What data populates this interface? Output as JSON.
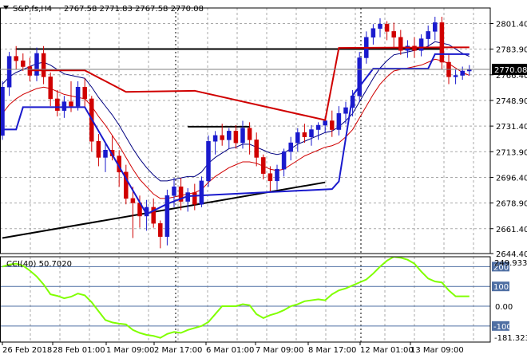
{
  "header": {
    "symbol": "S&P,fs,H4",
    "ohlc": "2767.58 2771.83 2767.58 2770.08"
  },
  "indicator": {
    "label": "CCI(40) 50.7020",
    "axis_top_value": "249.9335",
    "axis_bottom_value": "-181.3234"
  },
  "colors": {
    "background": "#ffffff",
    "grid": "#a9a9a9",
    "bull": "#1a1acd",
    "bear": "#d00000",
    "trend_channel_line": "#d00000",
    "lower_channel_line": "#1a1acd",
    "moving_average": "#000080",
    "cci_line": "#80ff00",
    "cci_level_line": "#4f6fa3",
    "price_tag": "#000000"
  },
  "chart_data": [
    {
      "type": "candlestick",
      "title": "S&P,fs,H4",
      "current_price": "2770.08",
      "y_tick_labels": [
        "2801.40",
        "2783.90",
        "2766.40",
        "2748.90",
        "2731.40",
        "2713.90",
        "2696.40",
        "2678.90",
        "2661.40",
        "2644.40"
      ],
      "ylim": [
        2644.4,
        2812
      ],
      "x_tick_labels": [
        "26 Feb 2018",
        "28 Feb 01:00",
        "1 Mar 09:00",
        "2 Mar 17:00",
        "6 Mar 01:00",
        "7 Mar 09:00",
        "8 Mar 17:00",
        "12 Mar 01:00",
        "13 Mar 09:00"
      ],
      "candles": [
        [
          2725,
          2762,
          2722,
          2758
        ],
        [
          2758,
          2782,
          2752,
          2779
        ],
        [
          2779,
          2786,
          2770,
          2776
        ],
        [
          2776,
          2781,
          2769,
          2772
        ],
        [
          2772,
          2778,
          2762,
          2766
        ],
        [
          2766,
          2785,
          2762,
          2781
        ],
        [
          2781,
          2786,
          2760,
          2765
        ],
        [
          2765,
          2768,
          2745,
          2750
        ],
        [
          2750,
          2756,
          2738,
          2742
        ],
        [
          2742,
          2752,
          2737,
          2748
        ],
        [
          2748,
          2762,
          2741,
          2745
        ],
        [
          2745,
          2762,
          2742,
          2758
        ],
        [
          2758,
          2764,
          2744,
          2750
        ],
        [
          2750,
          2752,
          2714,
          2721
        ],
        [
          2721,
          2726,
          2704,
          2710
        ],
        [
          2710,
          2720,
          2700,
          2715
        ],
        [
          2715,
          2725,
          2708,
          2711
        ],
        [
          2711,
          2715,
          2690,
          2700
        ],
        [
          2700,
          2705,
          2678,
          2682
        ],
        [
          2682,
          2690,
          2655,
          2679
        ],
        [
          2679,
          2684,
          2662,
          2670
        ],
        [
          2670,
          2681,
          2660,
          2676
        ],
        [
          2676,
          2682,
          2662,
          2665
        ],
        [
          2665,
          2667,
          2648,
          2656
        ],
        [
          2656,
          2688,
          2650,
          2684
        ],
        [
          2684,
          2696,
          2676,
          2690
        ],
        [
          2690,
          2696,
          2674,
          2680
        ],
        [
          2680,
          2689,
          2673,
          2686
        ],
        [
          2686,
          2692,
          2674,
          2678
        ],
        [
          2678,
          2697,
          2676,
          2694
        ],
        [
          2694,
          2725,
          2690,
          2721
        ],
        [
          2721,
          2728,
          2712,
          2725
        ],
        [
          2725,
          2733,
          2718,
          2722
        ],
        [
          2722,
          2730,
          2716,
          2728
        ],
        [
          2728,
          2732,
          2716,
          2720
        ],
        [
          2720,
          2735,
          2716,
          2730
        ],
        [
          2730,
          2734,
          2712,
          2722
        ],
        [
          2722,
          2727,
          2704,
          2710
        ],
        [
          2710,
          2712,
          2695,
          2699
        ],
        [
          2699,
          2704,
          2686,
          2694
        ],
        [
          2694,
          2705,
          2688,
          2702
        ],
        [
          2702,
          2716,
          2697,
          2714
        ],
        [
          2714,
          2724,
          2708,
          2720
        ],
        [
          2720,
          2730,
          2714,
          2727
        ],
        [
          2727,
          2733,
          2720,
          2724
        ],
        [
          2724,
          2732,
          2718,
          2729
        ],
        [
          2729,
          2734,
          2722,
          2732
        ],
        [
          2732,
          2738,
          2727,
          2735
        ],
        [
          2735,
          2742,
          2724,
          2729
        ],
        [
          2729,
          2745,
          2725,
          2740
        ],
        [
          2740,
          2748,
          2733,
          2744
        ],
        [
          2744,
          2756,
          2738,
          2752
        ],
        [
          2752,
          2782,
          2748,
          2778
        ],
        [
          2778,
          2796,
          2774,
          2792
        ],
        [
          2792,
          2801,
          2787,
          2798
        ],
        [
          2798,
          2805,
          2792,
          2801
        ],
        [
          2801,
          2803,
          2790,
          2796
        ],
        [
          2796,
          2802,
          2785,
          2792
        ],
        [
          2792,
          2797,
          2780,
          2783
        ],
        [
          2783,
          2790,
          2778,
          2786
        ],
        [
          2786,
          2792,
          2778,
          2783
        ],
        [
          2783,
          2794,
          2779,
          2791
        ],
        [
          2791,
          2800,
          2785,
          2796
        ],
        [
          2796,
          2806,
          2790,
          2802
        ],
        [
          2802,
          2806,
          2770,
          2775
        ],
        [
          2775,
          2781,
          2760,
          2765
        ],
        [
          2765,
          2770,
          2760,
          2766
        ],
        [
          2766,
          2772,
          2763,
          2769
        ],
        [
          2769,
          2773,
          2766,
          2770
        ]
      ],
      "overlays": {
        "moving_average": [
          2760,
          2765,
          2768,
          2770,
          2772,
          2774,
          2775,
          2773,
          2770,
          2767,
          2766,
          2765,
          2764,
          2758,
          2751,
          2745,
          2739,
          2732,
          2724,
          2716,
          2709,
          2703,
          2698,
          2694,
          2694,
          2695,
          2696,
          2697,
          2697,
          2700,
          2706,
          2710,
          2713,
          2716,
          2717,
          2719,
          2719,
          2717,
          2715,
          2713,
          2712,
          2713,
          2716,
          2719,
          2721,
          2723,
          2725,
          2727,
          2728,
          2731,
          2735,
          2740,
          2748,
          2756,
          2764,
          2771,
          2776,
          2780,
          2781,
          2782,
          2783,
          2784,
          2786,
          2789,
          2788,
          2787,
          2784,
          2781,
          2779
        ],
        "lower_envelope": [
          2740,
          2746,
          2750,
          2753,
          2755,
          2757,
          2758,
          2757,
          2755,
          2753,
          2752,
          2751,
          2750,
          2745,
          2738,
          2732,
          2725,
          2718,
          2710,
          2702,
          2695,
          2690,
          2685,
          2682,
          2682,
          2683,
          2684,
          2685,
          2686,
          2688,
          2693,
          2697,
          2700,
          2703,
          2705,
          2707,
          2707,
          2706,
          2704,
          2702,
          2701,
          2702,
          2705,
          2708,
          2711,
          2713,
          2715,
          2717,
          2718,
          2720,
          2724,
          2729,
          2737,
          2745,
          2753,
          2760,
          2765,
          2769,
          2770,
          2771,
          2772,
          2773,
          2775,
          2777,
          2776,
          2774,
          2771,
          2768,
          2766
        ],
        "upper_red_stepline": [
          [
            4,
            2769.4
          ],
          [
            12,
            2769.4
          ],
          [
            18,
            2754.7
          ],
          [
            28,
            2755.5
          ],
          [
            47,
            2735.5
          ],
          [
            49,
            2784.7
          ],
          [
            64,
            2785.1
          ],
          [
            68,
            2785.1
          ]
        ],
        "lower_blue_stepline": [
          [
            0,
            2729.1
          ],
          [
            2,
            2729.1
          ],
          [
            3,
            2744.3
          ],
          [
            12,
            2744.3
          ],
          [
            21,
            2671.3
          ],
          [
            24,
            2678.3
          ],
          [
            27,
            2683.6
          ],
          [
            48,
            2688.4
          ],
          [
            49,
            2693.6
          ],
          [
            51,
            2752.3
          ],
          [
            54,
            2770.6
          ],
          [
            62,
            2770.6
          ],
          [
            63,
            2780.5
          ],
          [
            68,
            2780.5
          ]
        ],
        "support_trendline": [
          [
            0,
            2655
          ],
          [
            47,
            2693
          ]
        ],
        "resistance_hline": [
          [
            2,
            2784
          ],
          [
            64,
            2784
          ]
        ],
        "black_short_hline": [
          [
            27,
            2731
          ],
          [
            36,
            2731
          ]
        ]
      }
    },
    {
      "type": "line",
      "title": "CCI(40) 50.7020",
      "levels": [
        200,
        100,
        0,
        -100
      ],
      "level_labels": [
        "200",
        "100",
        "0.00",
        "-100"
      ],
      "ylim": [
        -181.3234,
        249.9335
      ],
      "values": [
        200,
        210,
        215,
        205,
        180,
        150,
        110,
        60,
        52,
        40,
        48,
        64,
        55,
        20,
        -25,
        -70,
        -82,
        -88,
        -92,
        -120,
        -135,
        -145,
        -150,
        -160,
        -140,
        -130,
        -135,
        -120,
        -110,
        -100,
        -80,
        -40,
        0,
        0,
        0,
        10,
        5,
        -40,
        -60,
        -45,
        -35,
        -20,
        0,
        10,
        25,
        30,
        35,
        30,
        60,
        80,
        90,
        105,
        120,
        135,
        165,
        200,
        230,
        250,
        245,
        235,
        215,
        175,
        140,
        125,
        120,
        80,
        50,
        50,
        50
      ]
    }
  ]
}
